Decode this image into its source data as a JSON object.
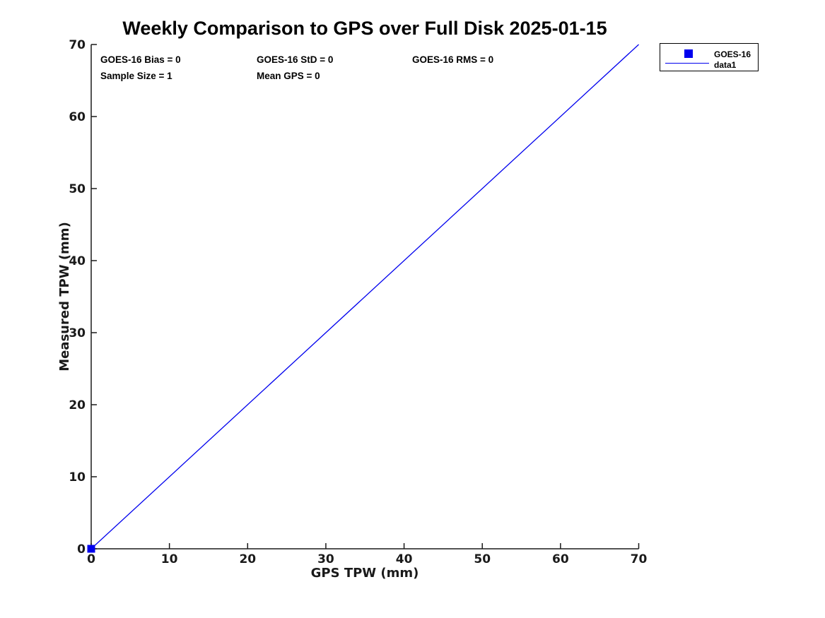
{
  "chart_data": {
    "type": "scatter",
    "title": "Weekly Comparison to GPS over Full Disk 2025-01-15",
    "xlabel": "GPS TPW (mm)",
    "ylabel": "Measured TPW (mm)",
    "xlim": [
      0,
      70
    ],
    "ylim": [
      0,
      70
    ],
    "xticks": [
      0,
      10,
      20,
      30,
      40,
      50,
      60,
      70
    ],
    "yticks": [
      0,
      10,
      20,
      30,
      40,
      50,
      60,
      70
    ],
    "grid": false,
    "legend_position": "outside-top-right",
    "legend": [
      "GOES-16",
      "data1"
    ],
    "stats": [
      "GOES-16 Bias = 0",
      "GOES-16 StD = 0",
      "GOES-16 RMS = 0",
      "Sample Size = 1",
      "Mean GPS = 0"
    ],
    "series": [
      {
        "name": "data1",
        "kind": "line",
        "color": "#0000ee",
        "points": [
          [
            0,
            0
          ],
          [
            70,
            70
          ]
        ]
      },
      {
        "name": "GOES-16",
        "kind": "scatter",
        "marker": "square",
        "color": "#0000ee",
        "points": [
          [
            0,
            0
          ]
        ]
      }
    ],
    "colors": {
      "accent_blue": "#0000ee",
      "axis": "#1a1a1a",
      "text": "#000000",
      "background": "#ffffff"
    }
  }
}
